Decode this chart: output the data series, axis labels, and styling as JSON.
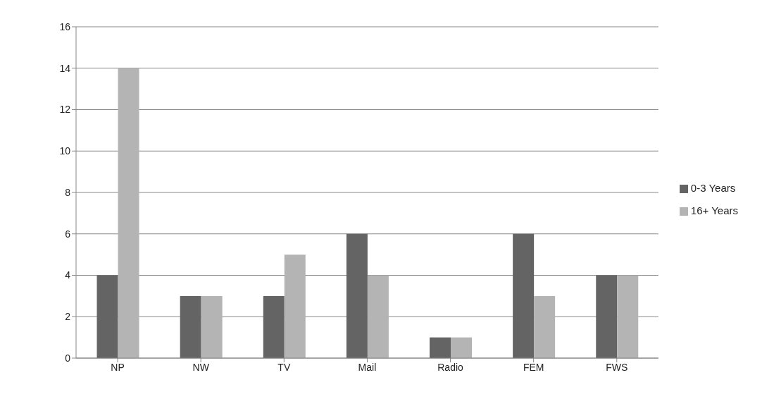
{
  "chart_data": {
    "type": "bar",
    "categories": [
      "NP",
      "NW",
      "TV",
      "Mail",
      "Radio",
      "FEM",
      "FWS"
    ],
    "series": [
      {
        "name": "0-3 Years",
        "color": "#646464",
        "values": [
          4,
          3,
          3,
          6,
          1,
          6,
          4
        ]
      },
      {
        "name": "16+ Years",
        "color": "#b4b4b4",
        "values": [
          14,
          3,
          5,
          4,
          1,
          3,
          4
        ]
      }
    ],
    "ylim": [
      0,
      16
    ],
    "yticks": [
      0,
      2,
      4,
      6,
      8,
      10,
      12,
      14,
      16
    ],
    "grid": "y",
    "legend": "right"
  }
}
